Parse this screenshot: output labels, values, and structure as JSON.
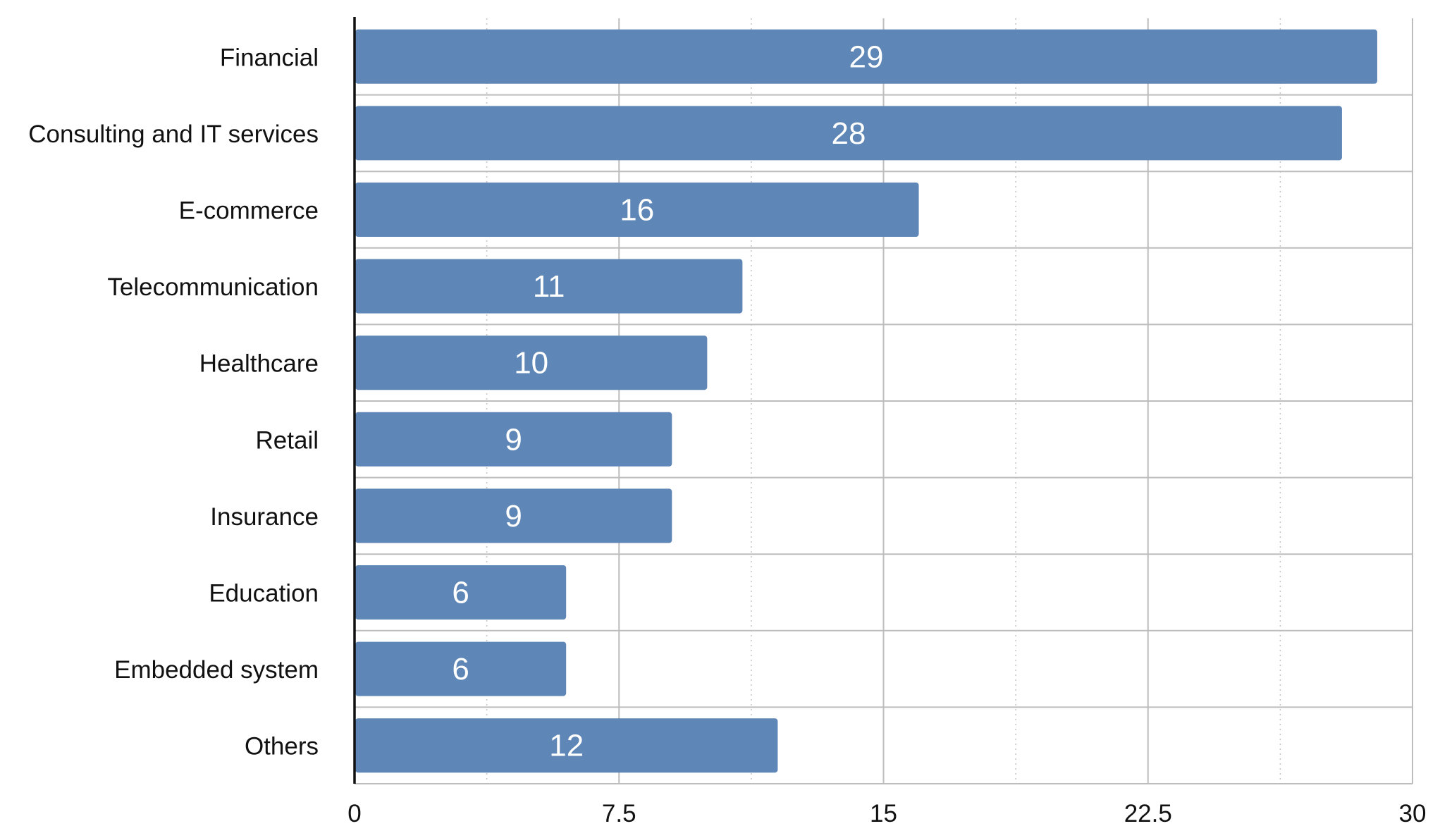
{
  "chart_data": {
    "type": "bar",
    "orientation": "horizontal",
    "title": "",
    "xlabel": "",
    "ylabel": "",
    "categories": [
      "Financial",
      "Consulting and IT services",
      "E-commerce",
      "Telecommunication",
      "Healthcare",
      "Retail",
      "Insurance",
      "Education",
      "Embedded system",
      "Others"
    ],
    "values": [
      29,
      28,
      16,
      11,
      10,
      9,
      9,
      6,
      6,
      12
    ],
    "xlim": [
      0,
      30
    ],
    "xticks": [
      "0",
      "7.5",
      "15",
      "22.5",
      "30"
    ],
    "xtick_values": [
      0,
      7.5,
      15,
      22.5,
      30
    ],
    "minor_grid_values": [
      3.75,
      11.25,
      18.75,
      26.25
    ],
    "grid": true,
    "legend": "none",
    "colors": {
      "bar": "#5e86b6",
      "bar_label": "#ffffff",
      "grid_major": "#bdbdbd",
      "grid_minor": "#c4c4c4",
      "axis": "#111111",
      "text": "#111111"
    }
  }
}
